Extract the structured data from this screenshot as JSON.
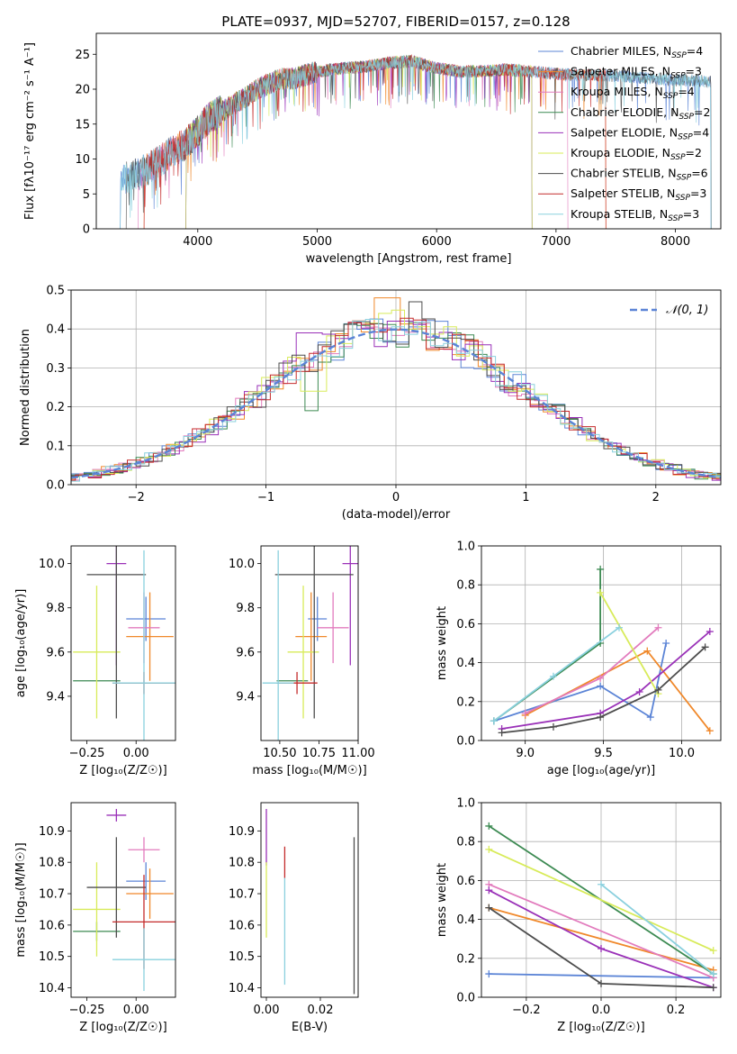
{
  "figure_title": "PLATE=0937, MJD=52707, FIBERID=0157, z=0.128",
  "colors": {
    "chabrier_miles": "#5b84d6",
    "salpeter_miles": "#f0882a",
    "kroupa_miles": "#e27bbd",
    "chabrier_elodie": "#3c8a52",
    "salpeter_elodie": "#9a31b8",
    "kroupa_elodie": "#d8eb5a",
    "chabrier_stelib": "#4d4d4d",
    "salpeter_stelib": "#c42b2b",
    "kroupa_stelib": "#8ad0de"
  },
  "chart_data": [
    {
      "id": "spectrum",
      "type": "line",
      "title": "PLATE=0937, MJD=52707, FIBERID=0157, z=0.128",
      "xlabel": "wavelength [Angstrom, rest frame]",
      "ylabel": "Flux [fλ10⁻¹⁷ erg cm⁻² s⁻¹ A⁻¹]",
      "xlim": [
        3150,
        8380
      ],
      "ylim": [
        0,
        28
      ],
      "xticks": [
        4000,
        5000,
        6000,
        7000,
        8000
      ],
      "yticks": [
        0,
        5,
        10,
        15,
        20,
        25
      ],
      "legend_position": "top-right",
      "continuum": {
        "x": [
          3350,
          3500,
          3600,
          3700,
          3800,
          3900,
          4000,
          4100,
          4200,
          4300,
          4400,
          4500,
          4600,
          4700,
          4800,
          4900,
          5000,
          5200,
          5400,
          5600,
          5800,
          6000,
          6200,
          6400,
          6600,
          6800,
          7000,
          7200,
          7400,
          7600,
          7800,
          8000,
          8200,
          8350
        ],
        "y": [
          7.2,
          7.8,
          8.8,
          10.0,
          11.2,
          12.2,
          14.0,
          16.0,
          16.8,
          17.8,
          18.8,
          20.0,
          20.8,
          21.5,
          21.5,
          22.0,
          22.5,
          23.0,
          23.2,
          23.8,
          24.0,
          23.0,
          22.5,
          22.6,
          22.8,
          22.5,
          22.2,
          22.0,
          22.0,
          21.8,
          21.5,
          21.3,
          21.2,
          21.0
        ]
      },
      "series": [
        {
          "name": "Chabrier MILES, N_SSP=4",
          "label_main": "Chabrier MILES, N",
          "label_sub": "SSP",
          "label_tail": "=4",
          "color_key": "chabrier_miles",
          "x_start": 3350,
          "x_end": 8300
        },
        {
          "name": "Salpeter MILES, N_SSP=3",
          "label_main": "Salpeter MILES, N",
          "label_sub": "SSP",
          "label_tail": "=3",
          "color_key": "salpeter_miles",
          "x_start": 3550,
          "x_end": 7420
        },
        {
          "name": "Kroupa MILES, N_SSP=4",
          "label_main": "Kroupa MILES, N",
          "label_sub": "SSP",
          "label_tail": "=4",
          "color_key": "kroupa_miles",
          "x_start": 3500,
          "x_end": 7100
        },
        {
          "name": "Chabrier ELODIE, N_SSP=2",
          "label_main": "Chabrier ELODIE, N",
          "label_sub": "SSP",
          "label_tail": "=2",
          "color_key": "chabrier_elodie",
          "x_start": 3900,
          "x_end": 6800
        },
        {
          "name": "Salpeter ELODIE, N_SSP=4",
          "label_main": "Salpeter ELODIE, N",
          "label_sub": "SSP",
          "label_tail": "=4",
          "color_key": "salpeter_elodie",
          "x_start": 3900,
          "x_end": 6800
        },
        {
          "name": "Kroupa ELODIE, N_SSP=2",
          "label_main": "Kroupa ELODIE, N",
          "label_sub": "SSP",
          "label_tail": "=2",
          "color_key": "kroupa_elodie",
          "x_start": 3900,
          "x_end": 6800
        },
        {
          "name": "Chabrier STELIB, N_SSP=6",
          "label_main": "Chabrier STELIB, N",
          "label_sub": "SSP",
          "label_tail": "=6",
          "color_key": "chabrier_stelib",
          "x_start": 3400,
          "x_end": 8300
        },
        {
          "name": "Salpeter STELIB, N_SSP=3",
          "label_main": "Salpeter STELIB, N",
          "label_sub": "SSP",
          "label_tail": "=3",
          "color_key": "salpeter_stelib",
          "x_start": 3550,
          "x_end": 7420
        },
        {
          "name": "Kroupa STELIB, N_SSP=3",
          "label_main": "Kroupa STELIB, N",
          "label_sub": "SSP",
          "label_tail": "=3",
          "color_key": "kroupa_stelib",
          "x_start": 3350,
          "x_end": 8300
        }
      ]
    },
    {
      "id": "residuals",
      "type": "line",
      "xlabel": "(data-model)/error",
      "ylabel": "Normed distribution",
      "xlim": [
        -2.5,
        2.5
      ],
      "ylim": [
        0,
        0.5
      ],
      "xticks": [
        -2,
        -1,
        0,
        1,
        2
      ],
      "yticks": [
        0.0,
        0.1,
        0.2,
        0.3,
        0.4,
        0.5
      ],
      "grid": true,
      "legend_position": "top-right",
      "reference_curve": {
        "label": "𝒩(0, 1)",
        "mean": 0,
        "sigma": 1
      },
      "histogram_bin_width": 0.1,
      "notable_bins": [
        {
          "color_key": "salpeter_miles",
          "x": -0.05,
          "y": 0.48
        },
        {
          "color_key": "chabrier_stelib",
          "x": 0.15,
          "y": 0.47
        },
        {
          "color_key": "salpeter_elodie",
          "x": -0.65,
          "y": 0.39
        },
        {
          "color_key": "chabrier_elodie",
          "x": -0.65,
          "y": 0.19
        },
        {
          "color_key": "kroupa_elodie",
          "x": -0.65,
          "y": 0.24
        }
      ]
    },
    {
      "id": "age_vs_Z",
      "type": "scatter",
      "xlabel": "Z [log₁₀(Z/Z☉)]",
      "ylabel": "age  [log₁₀(age/yr)]",
      "xlim": [
        -0.33,
        0.2
      ],
      "ylim": [
        9.2,
        10.08
      ],
      "xticks": [
        -0.25,
        0.0
      ],
      "yticks": [
        9.4,
        9.6,
        9.8,
        10.0
      ],
      "points": [
        {
          "color_key": "chabrier_miles",
          "x": 0.05,
          "y": 9.75,
          "xerr": 0.1,
          "yerr": 0.1
        },
        {
          "color_key": "salpeter_miles",
          "x": 0.07,
          "y": 9.67,
          "xerr": 0.12,
          "yerr": 0.2
        },
        {
          "color_key": "kroupa_miles",
          "x": 0.04,
          "y": 9.71,
          "xerr": 0.08,
          "yerr": 0.16
        },
        {
          "color_key": "chabrier_elodie",
          "x": -0.2,
          "y": 9.47,
          "xerr": 0.12,
          "yerr": 0.0
        },
        {
          "color_key": "salpeter_elodie",
          "x": -0.1,
          "y": 10.0,
          "xerr": 0.05,
          "yerr": 0.46
        },
        {
          "color_key": "kroupa_elodie",
          "x": -0.2,
          "y": 9.6,
          "xerr": 0.12,
          "yerr": 0.3
        },
        {
          "color_key": "chabrier_stelib",
          "x": -0.1,
          "y": 9.95,
          "xerr": 0.15,
          "yerr": 0.65
        },
        {
          "color_key": "salpeter_stelib",
          "x": 0.04,
          "y": 9.46,
          "xerr": 0.16,
          "yerr": 0.05
        },
        {
          "color_key": "kroupa_stelib",
          "x": 0.04,
          "y": 9.46,
          "xerr": 0.16,
          "yerr": 0.6
        }
      ]
    },
    {
      "id": "age_vs_mass",
      "type": "scatter",
      "xlabel": "mass [log₁₀(M/M☉)]",
      "ylabel": "",
      "xlim": [
        10.38,
        11.0
      ],
      "ylim": [
        9.2,
        10.08
      ],
      "xticks": [
        10.5,
        10.75,
        11.0
      ],
      "xtick_labels": [
        "10.50",
        "10.75",
        "11.00"
      ],
      "yticks": [
        9.4,
        9.6,
        9.8,
        10.0
      ],
      "points": [
        {
          "color_key": "chabrier_miles",
          "x": 10.74,
          "y": 9.75,
          "xerr": 0.06,
          "yerr": 0.1
        },
        {
          "color_key": "salpeter_miles",
          "x": 10.7,
          "y": 9.67,
          "xerr": 0.1,
          "yerr": 0.2
        },
        {
          "color_key": "kroupa_miles",
          "x": 10.84,
          "y": 9.71,
          "xerr": 0.1,
          "yerr": 0.16
        },
        {
          "color_key": "chabrier_elodie",
          "x": 10.58,
          "y": 9.47,
          "xerr": 0.1,
          "yerr": 0.0
        },
        {
          "color_key": "salpeter_elodie",
          "x": 10.95,
          "y": 10.0,
          "xerr": 0.05,
          "yerr": 0.46
        },
        {
          "color_key": "kroupa_elodie",
          "x": 10.65,
          "y": 9.6,
          "xerr": 0.1,
          "yerr": 0.3
        },
        {
          "color_key": "chabrier_stelib",
          "x": 10.72,
          "y": 9.95,
          "xerr": 0.25,
          "yerr": 0.65
        },
        {
          "color_key": "salpeter_stelib",
          "x": 10.61,
          "y": 9.46,
          "xerr": 0.13,
          "yerr": 0.05
        },
        {
          "color_key": "kroupa_stelib",
          "x": 10.49,
          "y": 9.46,
          "xerr": 0.1,
          "yerr": 0.6
        }
      ]
    },
    {
      "id": "mass_weight_vs_age",
      "type": "line",
      "xlabel": "age  [log₁₀(age/yr)]",
      "ylabel": "mass weight",
      "xlim": [
        8.72,
        10.25
      ],
      "ylim": [
        0,
        1.0
      ],
      "xticks": [
        9.0,
        9.5,
        10.0
      ],
      "yticks": [
        0.0,
        0.2,
        0.4,
        0.6,
        0.8,
        1.0
      ],
      "grid": true,
      "series": [
        {
          "color_key": "chabrier_miles",
          "x": [
            8.8,
            9.48,
            9.8,
            9.9
          ],
          "y": [
            0.1,
            0.28,
            0.12,
            0.5
          ]
        },
        {
          "color_key": "salpeter_miles",
          "x": [
            9.0,
            9.78,
            10.18
          ],
          "y": [
            0.13,
            0.46,
            0.05
          ]
        },
        {
          "color_key": "kroupa_miles",
          "x": [
            9.0,
            9.48,
            9.85
          ],
          "y": [
            0.14,
            0.32,
            0.58
          ]
        },
        {
          "color_key": "chabrier_elodie",
          "x": [
            8.8,
            9.48,
            9.48
          ],
          "y": [
            0.1,
            0.5,
            0.88
          ]
        },
        {
          "color_key": "salpeter_elodie",
          "x": [
            8.85,
            9.48,
            9.73,
            10.18
          ],
          "y": [
            0.06,
            0.14,
            0.25,
            0.56
          ]
        },
        {
          "color_key": "kroupa_elodie",
          "x": [
            9.48,
            9.85
          ],
          "y": [
            0.76,
            0.24
          ]
        },
        {
          "color_key": "chabrier_stelib",
          "x": [
            8.85,
            9.18,
            9.48,
            9.85,
            10.15
          ],
          "y": [
            0.04,
            0.07,
            0.12,
            0.26,
            0.48
          ]
        },
        {
          "color_key": "kroupa_stelib",
          "x": [
            8.8,
            9.18,
            9.6
          ],
          "y": [
            0.1,
            0.33,
            0.58
          ]
        }
      ]
    },
    {
      "id": "mass_vs_Z",
      "type": "scatter",
      "xlabel": "Z [log₁₀(Z/Z☉)]",
      "ylabel": "mass [log₁₀(M/M☉)]",
      "xlim": [
        -0.33,
        0.2
      ],
      "ylim": [
        10.37,
        10.99
      ],
      "xticks": [
        -0.25,
        0.0
      ],
      "yticks": [
        10.4,
        10.5,
        10.6,
        10.7,
        10.8,
        10.9
      ],
      "points": [
        {
          "color_key": "chabrier_miles",
          "x": 0.05,
          "y": 10.74,
          "xerr": 0.1,
          "yerr": 0.06
        },
        {
          "color_key": "salpeter_miles",
          "x": 0.07,
          "y": 10.7,
          "xerr": 0.12,
          "yerr": 0.08
        },
        {
          "color_key": "kroupa_miles",
          "x": 0.04,
          "y": 10.84,
          "xerr": 0.08,
          "yerr": 0.04
        },
        {
          "color_key": "chabrier_elodie",
          "x": -0.2,
          "y": 10.58,
          "xerr": 0.12,
          "yerr": 0.03
        },
        {
          "color_key": "salpeter_elodie",
          "x": -0.1,
          "y": 10.95,
          "xerr": 0.05,
          "yerr": 0.02
        },
        {
          "color_key": "kroupa_elodie",
          "x": -0.2,
          "y": 10.65,
          "xerr": 0.12,
          "yerr": 0.15
        },
        {
          "color_key": "chabrier_stelib",
          "x": -0.1,
          "y": 10.72,
          "xerr": 0.15,
          "yerr": 0.16
        },
        {
          "color_key": "salpeter_stelib",
          "x": 0.04,
          "y": 10.61,
          "xerr": 0.16,
          "yerr": 0.15
        },
        {
          "color_key": "kroupa_stelib",
          "x": 0.04,
          "y": 10.49,
          "xerr": 0.16,
          "yerr": 0.1
        }
      ]
    },
    {
      "id": "mass_vs_ebv",
      "type": "scatter",
      "xlabel": "E(B-V)",
      "ylabel": "",
      "xlim": [
        -0.002,
        0.034
      ],
      "ylim": [
        10.37,
        10.99
      ],
      "xticks": [
        0.0,
        0.02
      ],
      "xtick_labels": [
        "0.00",
        "0.02"
      ],
      "yticks": [
        10.4,
        10.5,
        10.6,
        10.7,
        10.8,
        10.9
      ],
      "points": [
        {
          "color_key": "salpeter_elodie",
          "x": 0.0,
          "y": 10.88,
          "xerr": 0.0,
          "yerr": 0.09
        },
        {
          "color_key": "kroupa_elodie",
          "x": 0.0,
          "y": 10.68,
          "xerr": 0.0,
          "yerr": 0.12
        },
        {
          "color_key": "salpeter_stelib",
          "x": 0.0068,
          "y": 10.8,
          "xerr": 0.0,
          "yerr": 0.05
        },
        {
          "color_key": "kroupa_stelib",
          "x": 0.0068,
          "y": 10.58,
          "xerr": 0.0,
          "yerr": 0.17
        },
        {
          "color_key": "chabrier_stelib",
          "x": 0.0325,
          "y": 10.63,
          "xerr": 0.0,
          "yerr": 0.25
        }
      ]
    },
    {
      "id": "mass_weight_vs_Z",
      "type": "line",
      "xlabel": "Z [log₁₀(Z/Z☉)]",
      "ylabel": "mass weight",
      "xlim": [
        -0.32,
        0.32
      ],
      "ylim": [
        0,
        1.0
      ],
      "xticks": [
        -0.2,
        0.0,
        0.2
      ],
      "xtick_labels": [
        "−0.2",
        "0.0",
        "0.2"
      ],
      "yticks": [
        0.0,
        0.2,
        0.4,
        0.6,
        0.8,
        1.0
      ],
      "grid": true,
      "series": [
        {
          "color_key": "chabrier_miles",
          "x": [
            -0.3,
            0.3
          ],
          "y": [
            0.12,
            0.1
          ]
        },
        {
          "color_key": "salpeter_miles",
          "x": [
            -0.3,
            0.3
          ],
          "y": [
            0.46,
            0.14
          ]
        },
        {
          "color_key": "kroupa_miles",
          "x": [
            -0.3,
            0.3
          ],
          "y": [
            0.58,
            0.1
          ]
        },
        {
          "color_key": "chabrier_elodie",
          "x": [
            -0.3,
            0.3
          ],
          "y": [
            0.88,
            0.12
          ]
        },
        {
          "color_key": "salpeter_elodie",
          "x": [
            -0.3,
            0.0,
            0.3
          ],
          "y": [
            0.55,
            0.25,
            0.05
          ]
        },
        {
          "color_key": "kroupa_elodie",
          "x": [
            -0.3,
            0.3
          ],
          "y": [
            0.76,
            0.24
          ]
        },
        {
          "color_key": "chabrier_stelib",
          "x": [
            -0.3,
            0.0,
            0.3
          ],
          "y": [
            0.46,
            0.07,
            0.05
          ]
        },
        {
          "color_key": "kroupa_stelib",
          "x": [
            0.0,
            0.3
          ],
          "y": [
            0.58,
            0.12
          ]
        }
      ]
    }
  ]
}
